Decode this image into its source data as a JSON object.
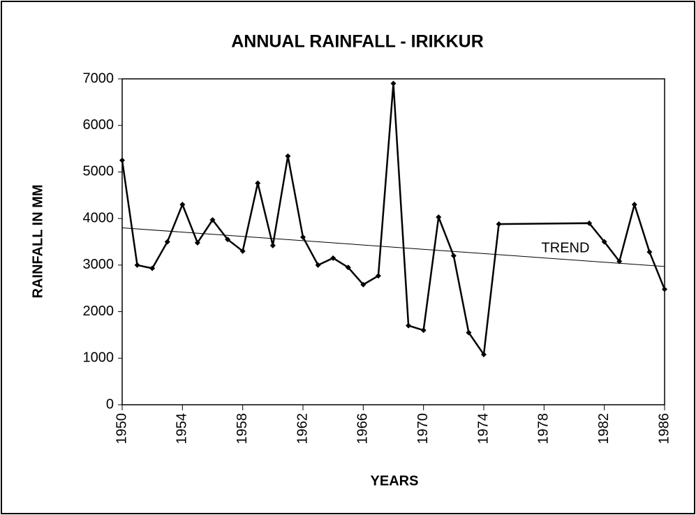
{
  "chart_data": {
    "type": "line",
    "title": "ANNUAL RAINFALL - IRIKKUR",
    "x_label": "YEARS",
    "y_label": "RAINFALL IN MM",
    "series": [
      {
        "name": "RAINFALL",
        "color": "#000000",
        "x": [
          1950,
          1951,
          1952,
          1953,
          1954,
          1955,
          1956,
          1957,
          1958,
          1959,
          1960,
          1961,
          1962,
          1963,
          1964,
          1965,
          1966,
          1967,
          1968,
          1969,
          1970,
          1971,
          1972,
          1973,
          1974,
          1975,
          1981,
          1982,
          1983,
          1984,
          1985,
          1986
        ],
        "values": [
          5250,
          3000,
          2930,
          3500,
          4300,
          3480,
          3970,
          3550,
          3300,
          4760,
          3420,
          5340,
          3600,
          3000,
          3150,
          2950,
          2580,
          2770,
          6900,
          1700,
          1600,
          4030,
          3200,
          1550,
          1080,
          3880,
          3900,
          3500,
          3080,
          4300,
          3280,
          2480
        ]
      },
      {
        "name": "TREND",
        "color": "#000000",
        "x": [
          1950,
          1986
        ],
        "values": [
          3800,
          2970
        ]
      }
    ],
    "xlim": [
      1950,
      1986
    ],
    "xticks": [
      1950,
      1954,
      1958,
      1962,
      1966,
      1970,
      1974,
      1978,
      1982,
      1986
    ],
    "ylim": [
      0,
      7000
    ],
    "yticks": [
      0,
      1000,
      2000,
      3000,
      4000,
      5000,
      6000,
      7000
    ]
  }
}
